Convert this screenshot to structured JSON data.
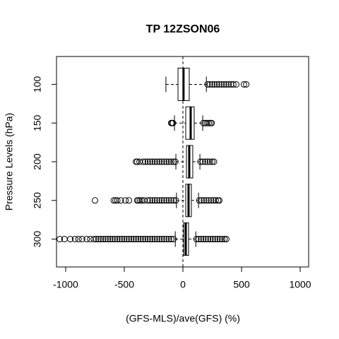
{
  "chart_data": {
    "type": "boxplot",
    "orientation": "horizontal",
    "title": "TP 12ZSON06",
    "x_label": "(GFS-MLS)/ave(GFS) (%)",
    "y_label": "Pressure Levels (hPa)",
    "xlim": [
      -1078,
      1072
    ],
    "xticks": [
      -1000,
      -500,
      0,
      500,
      1000
    ],
    "ylim": [
      336,
      64
    ],
    "yticks": [
      100,
      150,
      200,
      250,
      300
    ],
    "reference_line": 0,
    "color": "#000000",
    "boxes": [
      {
        "position": 100,
        "whislo": -145,
        "q1": -42,
        "med": 5,
        "q3": 54,
        "whishi": 200,
        "fliers": [
          210,
          230,
          250,
          270,
          290,
          310,
          330,
          350,
          370,
          390,
          410,
          430,
          455,
          520,
          540
        ]
      },
      {
        "position": 150,
        "whislo": -72,
        "q1": 24,
        "med": 66,
        "q3": 96,
        "whishi": 169,
        "fliers": [
          -100,
          -92,
          -85,
          175,
          190,
          205,
          220,
          235,
          245
        ]
      },
      {
        "position": 200,
        "whislo": -60,
        "q1": 30,
        "med": 54,
        "q3": 84,
        "whishi": 145,
        "fliers": [
          -400,
          -390,
          -370,
          -340,
          -320,
          -300,
          -280,
          -260,
          -240,
          -220,
          -200,
          -180,
          -160,
          -140,
          -120,
          -100,
          -80,
          -65,
          150,
          170,
          190,
          210,
          230,
          250,
          265
        ]
      },
      {
        "position": 250,
        "whislo": -55,
        "q1": 24,
        "med": 48,
        "q3": 72,
        "whishi": 133,
        "fliers": [
          -750,
          -590,
          -575,
          -560,
          -530,
          -490,
          -460,
          -390,
          -380,
          -365,
          -350,
          -330,
          -300,
          -280,
          -260,
          -240,
          -220,
          -200,
          -180,
          -160,
          -140,
          -120,
          -100,
          -80,
          -60,
          140,
          160,
          180,
          200,
          220,
          240,
          260,
          280,
          300,
          310
        ]
      },
      {
        "position": 300,
        "whislo": -65,
        "q1": 6,
        "med": 24,
        "q3": 48,
        "whishi": 110,
        "fliers": [
          -1050,
          -1010,
          -960,
          -920,
          -890,
          -860,
          -820,
          -790,
          -760,
          -740,
          -720,
          -700,
          -680,
          -660,
          -640,
          -620,
          -600,
          -580,
          -560,
          -540,
          -520,
          -500,
          -480,
          -460,
          -440,
          -420,
          -400,
          -380,
          -360,
          -340,
          -320,
          -300,
          -280,
          -260,
          -240,
          -220,
          -200,
          -180,
          -160,
          -140,
          -120,
          -100,
          -80,
          115,
          135,
          155,
          175,
          195,
          215,
          235,
          255,
          275,
          295,
          315,
          335,
          355,
          370
        ]
      }
    ]
  }
}
